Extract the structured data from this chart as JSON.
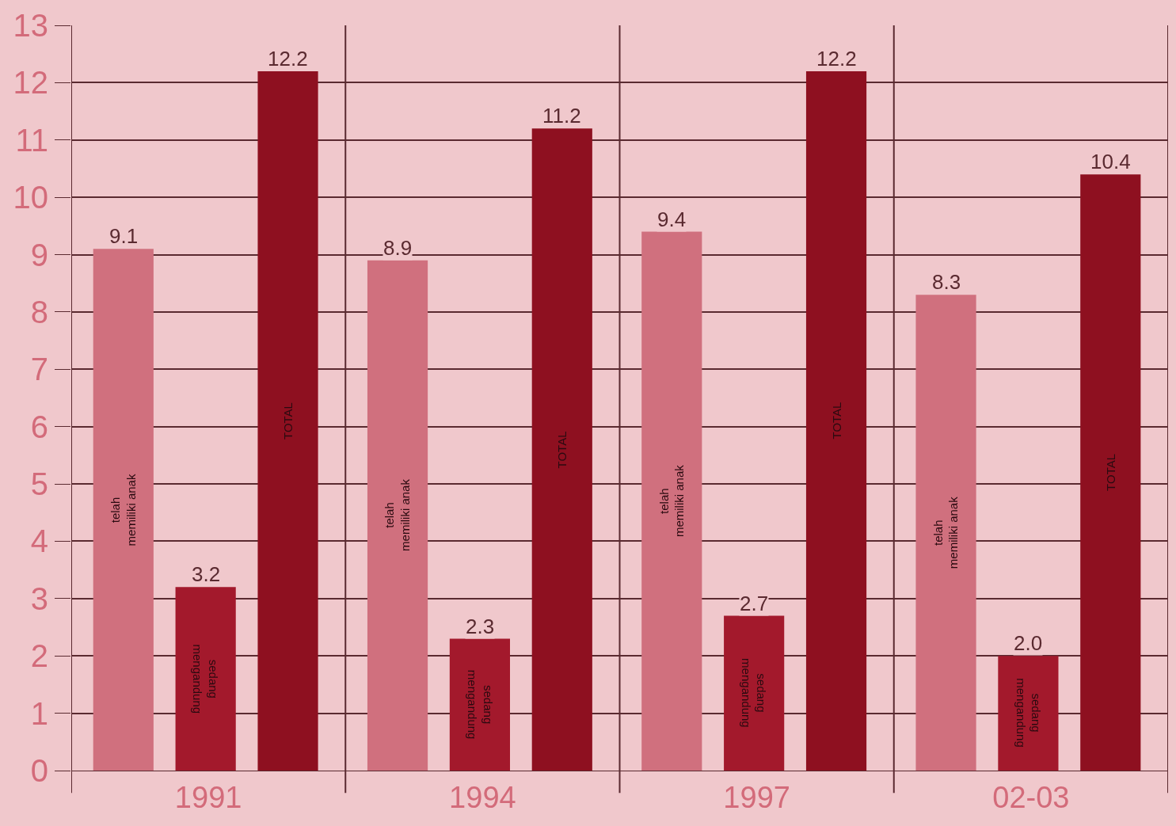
{
  "chart_data": {
    "type": "bar",
    "categories": [
      "1991",
      "1994",
      "1997",
      "02-03"
    ],
    "series": [
      {
        "name": "telah memiliki anak",
        "color": "#d0707e",
        "values": [
          9.1,
          8.9,
          9.4,
          8.3
        ]
      },
      {
        "name": "sedang mengandung",
        "color": "#a3192c",
        "values": [
          3.2,
          2.3,
          2.7,
          2.0
        ]
      },
      {
        "name": "TOTAL",
        "color": "#8e1020",
        "values": [
          12.2,
          11.2,
          12.2,
          10.4
        ]
      }
    ],
    "ylim": [
      0,
      13
    ],
    "yticks": [
      0,
      1,
      2,
      3,
      4,
      5,
      6,
      7,
      8,
      9,
      10,
      11,
      12,
      13
    ],
    "value_labels": [
      [
        "9.1",
        "8.9",
        "9.4",
        "8.3"
      ],
      [
        "3.2",
        "2.3",
        "2.7",
        "2.0"
      ],
      [
        "12.2",
        "11.2",
        "12.2",
        "10.4"
      ]
    ],
    "grid": true,
    "legend": false
  }
}
